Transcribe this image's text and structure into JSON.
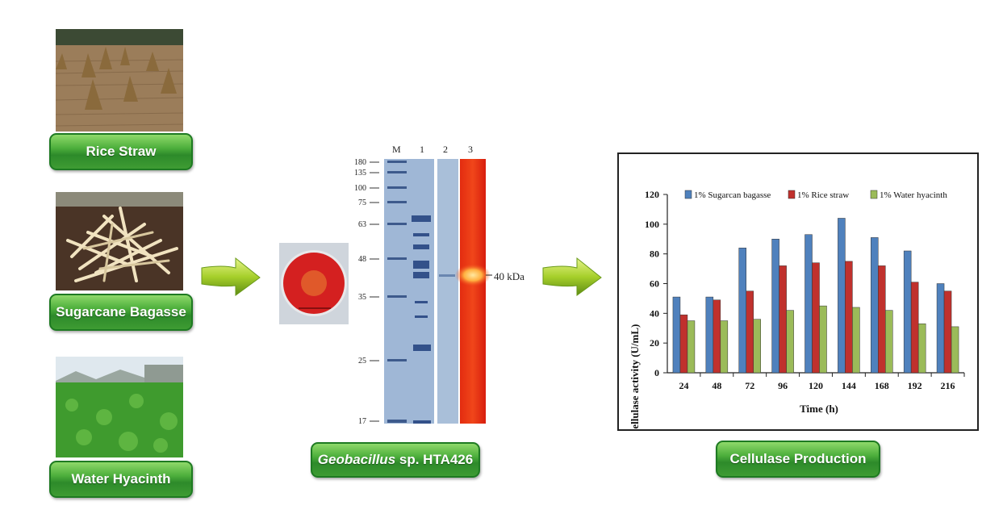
{
  "substrates": [
    {
      "label": "Rice Straw"
    },
    {
      "label": "Sugarcane Bagasse"
    },
    {
      "label": "Water Hyacinth"
    }
  ],
  "organism": {
    "genus": "Geobacillus",
    "rest": " sp. HTA426"
  },
  "product": {
    "label": "Cellulase Production"
  },
  "gel": {
    "lanes": [
      "M",
      "1",
      "2",
      "3"
    ],
    "markers": [
      "180",
      "135",
      "100",
      "75",
      "63",
      "48",
      "35",
      "25",
      "17"
    ],
    "band_label": "40 kDa"
  },
  "chart_data": {
    "type": "bar",
    "xlabel": "Time (h)",
    "ylabel": "Cellulase activity (U/mL)",
    "ylim": [
      0,
      120
    ],
    "yticks": [
      0,
      20,
      40,
      60,
      80,
      100,
      120
    ],
    "categories": [
      "24",
      "48",
      "72",
      "96",
      "120",
      "144",
      "168",
      "192",
      "216"
    ],
    "legend_position": "top",
    "series": [
      {
        "name": "1% Sugarcan bagasse",
        "color": "#4f81bd",
        "values": [
          51,
          51,
          84,
          90,
          93,
          104,
          91,
          82,
          60
        ]
      },
      {
        "name": "1% Rice straw",
        "color": "#c0312d",
        "values": [
          39,
          49,
          55,
          72,
          74,
          75,
          72,
          61,
          55
        ]
      },
      {
        "name": "1% Water hyacinth",
        "color": "#9bbb59",
        "values": [
          35,
          35,
          36,
          42,
          45,
          44,
          42,
          33,
          31
        ]
      }
    ]
  }
}
